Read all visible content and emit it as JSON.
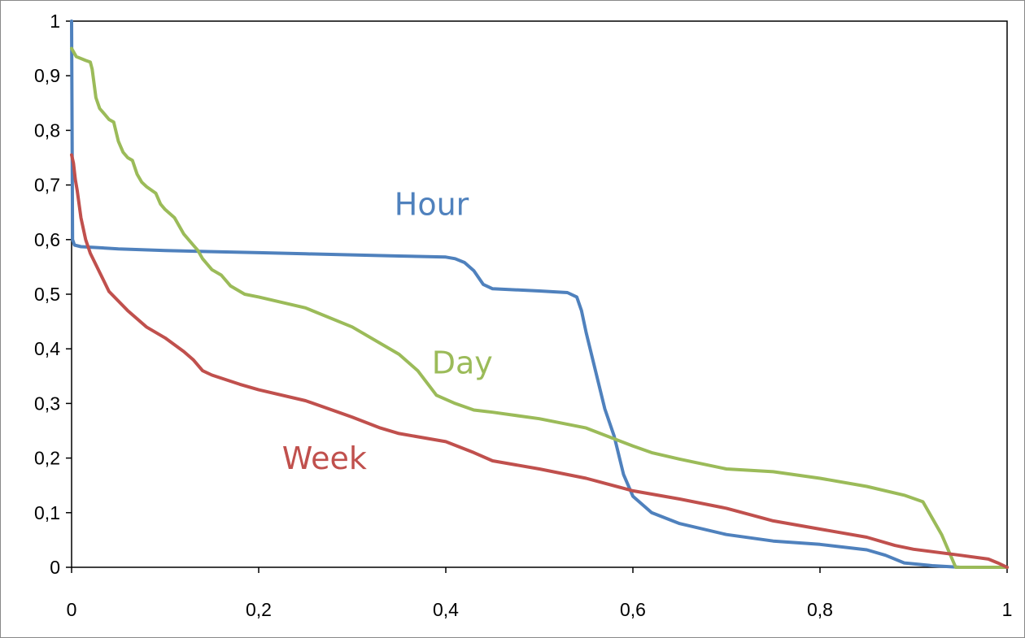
{
  "chart_data": {
    "type": "line",
    "title": "",
    "xlabel": "",
    "ylabel": "",
    "xlim": [
      0,
      1
    ],
    "ylim": [
      0,
      1
    ],
    "grid": false,
    "legend": "inline labels",
    "x_ticks": [
      "0",
      "0,2",
      "0,4",
      "0,6",
      "0,8",
      "1"
    ],
    "y_ticks": [
      "0",
      "0,1",
      "0,2",
      "0,3",
      "0,4",
      "0,5",
      "0,6",
      "0,7",
      "0,8",
      "0,9",
      "1"
    ],
    "series": [
      {
        "name": "Hour",
        "color": "#4F81BD",
        "points": [
          [
            0,
            1.0
          ],
          [
            0.001,
            0.6
          ],
          [
            0.003,
            0.59
          ],
          [
            0.01,
            0.587
          ],
          [
            0.05,
            0.583
          ],
          [
            0.1,
            0.58
          ],
          [
            0.15,
            0.578
          ],
          [
            0.2,
            0.576
          ],
          [
            0.25,
            0.574
          ],
          [
            0.3,
            0.572
          ],
          [
            0.35,
            0.57
          ],
          [
            0.4,
            0.568
          ],
          [
            0.41,
            0.565
          ],
          [
            0.42,
            0.558
          ],
          [
            0.43,
            0.543
          ],
          [
            0.44,
            0.518
          ],
          [
            0.45,
            0.51
          ],
          [
            0.5,
            0.506
          ],
          [
            0.53,
            0.503
          ],
          [
            0.54,
            0.495
          ],
          [
            0.545,
            0.47
          ],
          [
            0.55,
            0.43
          ],
          [
            0.56,
            0.36
          ],
          [
            0.57,
            0.29
          ],
          [
            0.58,
            0.24
          ],
          [
            0.59,
            0.17
          ],
          [
            0.6,
            0.13
          ],
          [
            0.62,
            0.1
          ],
          [
            0.65,
            0.08
          ],
          [
            0.7,
            0.06
          ],
          [
            0.75,
            0.048
          ],
          [
            0.8,
            0.042
          ],
          [
            0.85,
            0.032
          ],
          [
            0.87,
            0.022
          ],
          [
            0.89,
            0.008
          ],
          [
            0.92,
            0.003
          ],
          [
            0.95,
            0.0
          ],
          [
            1.0,
            0.0
          ]
        ]
      },
      {
        "name": "Day",
        "color": "#9BBB59",
        "points": [
          [
            0,
            0.95
          ],
          [
            0.005,
            0.935
          ],
          [
            0.015,
            0.928
          ],
          [
            0.02,
            0.925
          ],
          [
            0.022,
            0.912
          ],
          [
            0.026,
            0.86
          ],
          [
            0.03,
            0.84
          ],
          [
            0.035,
            0.83
          ],
          [
            0.04,
            0.82
          ],
          [
            0.045,
            0.815
          ],
          [
            0.05,
            0.78
          ],
          [
            0.055,
            0.76
          ],
          [
            0.06,
            0.75
          ],
          [
            0.065,
            0.745
          ],
          [
            0.07,
            0.72
          ],
          [
            0.075,
            0.705
          ],
          [
            0.08,
            0.697
          ],
          [
            0.09,
            0.685
          ],
          [
            0.095,
            0.665
          ],
          [
            0.1,
            0.655
          ],
          [
            0.11,
            0.64
          ],
          [
            0.12,
            0.61
          ],
          [
            0.13,
            0.59
          ],
          [
            0.135,
            0.58
          ],
          [
            0.14,
            0.565
          ],
          [
            0.15,
            0.545
          ],
          [
            0.16,
            0.535
          ],
          [
            0.17,
            0.515
          ],
          [
            0.185,
            0.5
          ],
          [
            0.2,
            0.495
          ],
          [
            0.25,
            0.475
          ],
          [
            0.3,
            0.44
          ],
          [
            0.35,
            0.39
          ],
          [
            0.37,
            0.36
          ],
          [
            0.39,
            0.315
          ],
          [
            0.41,
            0.3
          ],
          [
            0.43,
            0.288
          ],
          [
            0.45,
            0.284
          ],
          [
            0.5,
            0.272
          ],
          [
            0.55,
            0.255
          ],
          [
            0.6,
            0.222
          ],
          [
            0.62,
            0.21
          ],
          [
            0.65,
            0.198
          ],
          [
            0.7,
            0.18
          ],
          [
            0.75,
            0.175
          ],
          [
            0.8,
            0.163
          ],
          [
            0.85,
            0.148
          ],
          [
            0.89,
            0.132
          ],
          [
            0.91,
            0.12
          ],
          [
            0.93,
            0.06
          ],
          [
            0.945,
            0.0
          ],
          [
            1.0,
            0.0
          ]
        ]
      },
      {
        "name": "Week",
        "color": "#C0504D",
        "points": [
          [
            0,
            0.755
          ],
          [
            0.002,
            0.74
          ],
          [
            0.004,
            0.71
          ],
          [
            0.006,
            0.69
          ],
          [
            0.01,
            0.64
          ],
          [
            0.015,
            0.6
          ],
          [
            0.02,
            0.575
          ],
          [
            0.03,
            0.54
          ],
          [
            0.04,
            0.505
          ],
          [
            0.06,
            0.47
          ],
          [
            0.08,
            0.44
          ],
          [
            0.1,
            0.42
          ],
          [
            0.12,
            0.395
          ],
          [
            0.13,
            0.38
          ],
          [
            0.14,
            0.36
          ],
          [
            0.15,
            0.352
          ],
          [
            0.18,
            0.335
          ],
          [
            0.2,
            0.325
          ],
          [
            0.25,
            0.305
          ],
          [
            0.3,
            0.275
          ],
          [
            0.33,
            0.255
          ],
          [
            0.35,
            0.245
          ],
          [
            0.4,
            0.23
          ],
          [
            0.43,
            0.21
          ],
          [
            0.45,
            0.195
          ],
          [
            0.5,
            0.18
          ],
          [
            0.55,
            0.163
          ],
          [
            0.6,
            0.14
          ],
          [
            0.65,
            0.125
          ],
          [
            0.7,
            0.108
          ],
          [
            0.75,
            0.085
          ],
          [
            0.8,
            0.07
          ],
          [
            0.85,
            0.055
          ],
          [
            0.88,
            0.04
          ],
          [
            0.9,
            0.033
          ],
          [
            0.95,
            0.022
          ],
          [
            0.98,
            0.015
          ],
          [
            0.99,
            0.008
          ],
          [
            1.0,
            0.0
          ]
        ]
      }
    ],
    "annotations": [
      {
        "text": "Hour",
        "color": "#4F81BD",
        "x": 0.345,
        "y": 0.645
      },
      {
        "text": "Day",
        "color": "#9BBB59",
        "x": 0.385,
        "y": 0.355
      },
      {
        "text": "Week",
        "color": "#C0504D",
        "x": 0.225,
        "y": 0.18
      }
    ]
  }
}
